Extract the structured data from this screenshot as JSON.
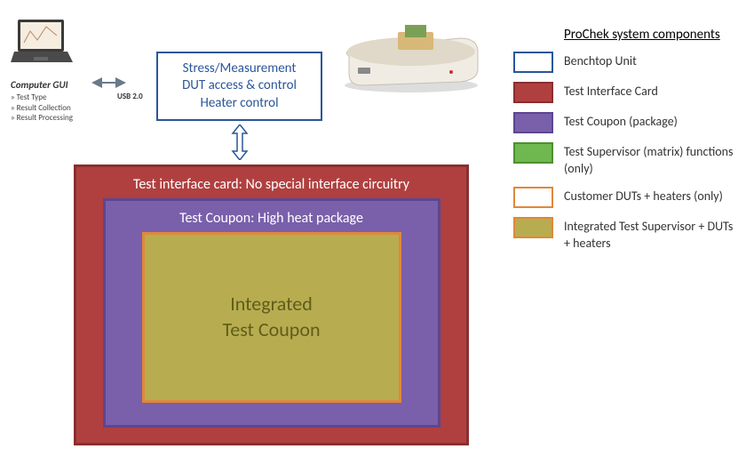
{
  "laptop": {
    "title": "Computer GUI",
    "items": [
      "Test Type",
      "Result Collection",
      "Result Processing"
    ],
    "usb_label": "USB 2.0",
    "screen_bg": "#f5ede0",
    "body_color": "#3a3a3a"
  },
  "control_box": {
    "line1": "Stress/Measurement",
    "line2": "DUT access & control",
    "line3": "Heater control",
    "border_color": "#2a5699",
    "text_color": "#2a5699"
  },
  "benchtop": {
    "body_color": "#f0ece4",
    "top_color": "#d8b878",
    "chip_color": "#7aa055"
  },
  "nested": {
    "outer": {
      "label": "Test interface card: No special interface circuitry",
      "fill": "#b04040",
      "border": "#8a2e2e",
      "text_color": "#ffffff"
    },
    "mid": {
      "label": "Test Coupon: High heat package",
      "fill": "#7a60aa",
      "border": "#5c4690",
      "text_color": "#ffffff"
    },
    "inner": {
      "label1": "Integrated",
      "label2": "Test Coupon",
      "fill": "#b8ac50",
      "border": "#e08838",
      "label_color": "#5e5e1a"
    }
  },
  "legend": {
    "title": "ProChek system components",
    "items": [
      {
        "label": "Benchtop Unit",
        "fill": "#ffffff",
        "border": "#2a5699"
      },
      {
        "label": "Test Interface Card",
        "fill": "#b04040",
        "border": "#8a2e2e"
      },
      {
        "label": "Test Coupon (package)",
        "fill": "#7a60aa",
        "border": "#5c4690"
      },
      {
        "label": "Test Supervisor (matrix) functions (only)",
        "fill": "#6fb850",
        "border": "#4d9030"
      },
      {
        "label": "Customer DUTs + heaters (only)",
        "fill": "#ffffff",
        "border": "#e08838"
      },
      {
        "label": "Integrated Test Supervisor + DUTs + heaters",
        "fill": "#b8ac50",
        "border": "#e08838"
      }
    ]
  },
  "arrow_color": "#6a7a8a"
}
